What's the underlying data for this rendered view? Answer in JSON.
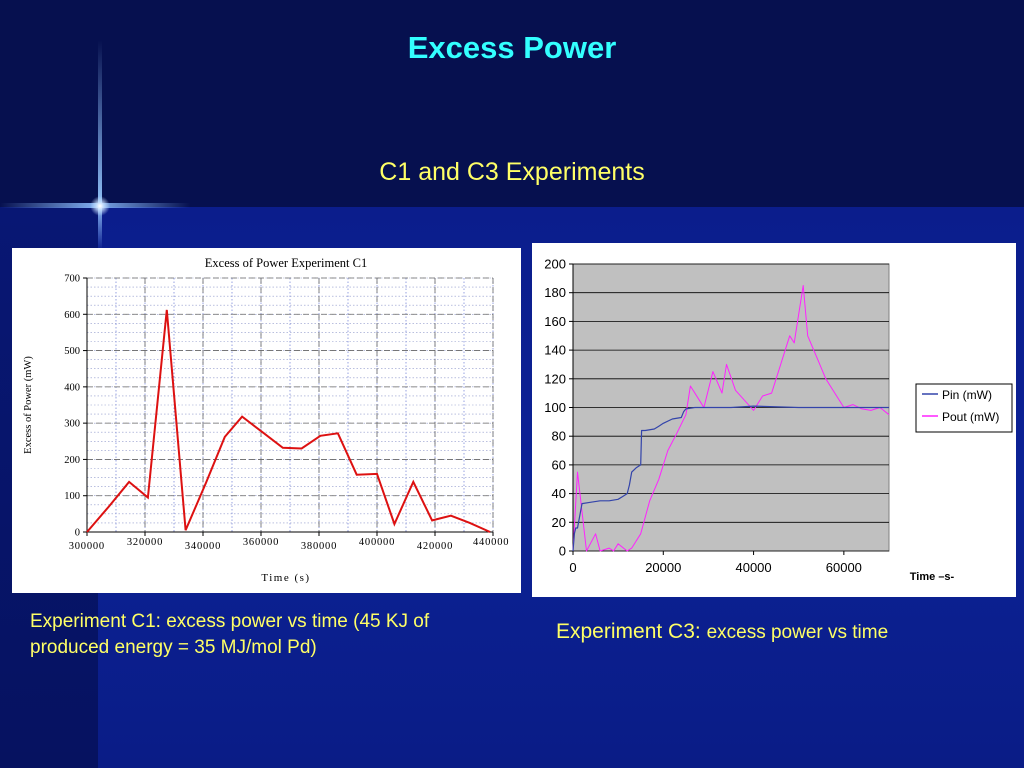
{
  "slide": {
    "title": "Excess Power",
    "subtitle": "C1 and C3 Experiments"
  },
  "captions": {
    "c1": "Experiment C1:  excess power  vs time (45 KJ of produced energy = 35 MJ/mol Pd)",
    "c3_lead": "Experiment C3: ",
    "c3_rest": "excess power vs time"
  },
  "colors": {
    "background": "#06104f",
    "title": "#33ffff",
    "text": "#ffff66",
    "c1_line": "#dd1111",
    "pin": "#3344aa",
    "pout": "#ff22ff",
    "plot_area_c3": "#c0c0c0"
  },
  "chart_data": [
    {
      "type": "line",
      "title": "Excess of Power Experiment C1",
      "xlabel": "Time (s)",
      "ylabel": "Excess of Power (mW)",
      "xlim": [
        300000,
        440000
      ],
      "ylim": [
        0,
        700
      ],
      "xticks": [
        300000,
        320000,
        340000,
        360000,
        380000,
        400000,
        420000,
        440000
      ],
      "yticks": [
        0,
        100,
        200,
        300,
        400,
        500,
        600,
        700
      ],
      "grid": true,
      "series": [
        {
          "x": [
            300000,
            307500,
            314500,
            321000,
            327500,
            334000,
            341000,
            347500,
            353500,
            360500,
            367500,
            374000,
            380500,
            386500,
            393000,
            400000,
            406000,
            412500,
            419000,
            425500,
            432000,
            439000
          ],
          "y": [
            0,
            70,
            138,
            95,
            612,
            5,
            135,
            262,
            318,
            275,
            232,
            230,
            265,
            272,
            158,
            160,
            22,
            138,
            32,
            45,
            25,
            0
          ]
        }
      ]
    },
    {
      "type": "line",
      "xlabel": "Time –s-",
      "xlim": [
        0,
        70000
      ],
      "ylim": [
        0,
        200
      ],
      "xticks": [
        0,
        20000,
        40000,
        60000
      ],
      "yticks": [
        0,
        20,
        40,
        60,
        80,
        100,
        120,
        140,
        160,
        180,
        200
      ],
      "grid": true,
      "legend_position": "right",
      "series": [
        {
          "name": "Pin (mW)",
          "x": [
            0,
            300,
            600,
            1000,
            2000,
            4000,
            6000,
            8000,
            10000,
            11000,
            12000,
            12500,
            13000,
            14000,
            15000,
            15200,
            16000,
            18000,
            19000,
            20000,
            22000,
            24000,
            24500,
            25000,
            27000,
            30000,
            35000,
            40000,
            50000,
            60000,
            70000
          ],
          "y": [
            0,
            12,
            16,
            16,
            33,
            34,
            35,
            35,
            36,
            38,
            40,
            46,
            55,
            58,
            60,
            84,
            84,
            85,
            87,
            89,
            92,
            93,
            97,
            99,
            100,
            100,
            100,
            101,
            100,
            100,
            100
          ]
        },
        {
          "name": "Pout (mW)",
          "x": [
            0,
            1000,
            3000,
            5000,
            6000,
            8000,
            9000,
            10000,
            12000,
            13000,
            15000,
            17000,
            19000,
            21000,
            23000,
            25000,
            26000,
            28000,
            29000,
            31000,
            33000,
            34000,
            36000,
            38000,
            40000,
            42000,
            44000,
            46000,
            48000,
            49000,
            50000,
            51000,
            52000,
            54000,
            56000,
            58000,
            60000,
            62000,
            64000,
            66000,
            68000,
            70000
          ],
          "y": [
            0,
            55,
            0,
            12,
            0,
            2,
            0,
            5,
            0,
            2,
            12,
            35,
            50,
            70,
            82,
            95,
            115,
            105,
            100,
            125,
            110,
            130,
            112,
            105,
            98,
            108,
            110,
            130,
            150,
            145,
            165,
            185,
            150,
            135,
            120,
            110,
            100,
            102,
            99,
            98,
            100,
            95
          ]
        }
      ]
    }
  ]
}
